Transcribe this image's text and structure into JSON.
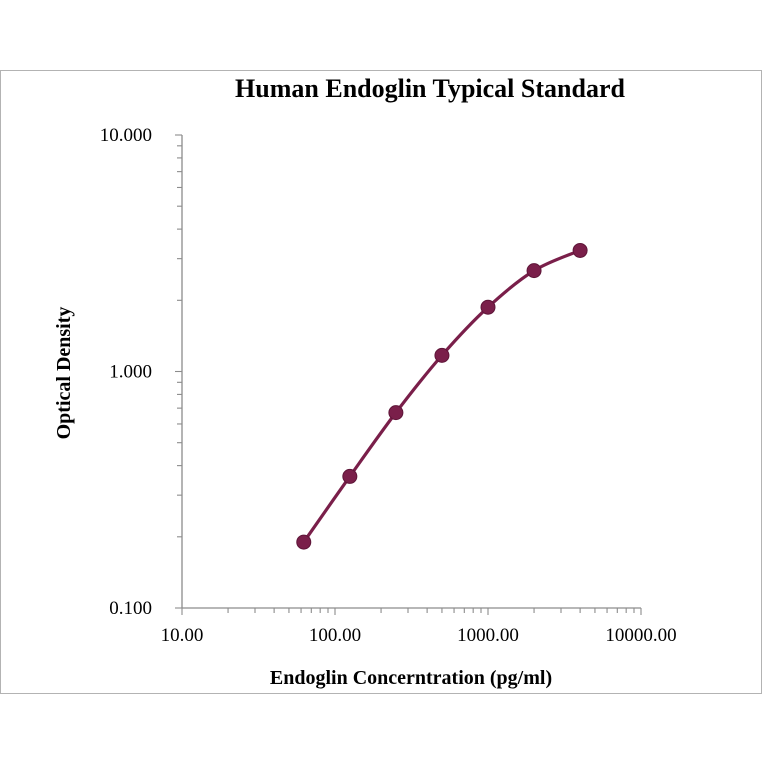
{
  "chart_data": {
    "type": "line",
    "title": "Human Endoglin Typical Standard",
    "xlabel": "Endoglin Concerntration (pg/ml)",
    "ylabel": "Optical Density",
    "x_scale": "log",
    "y_scale": "log",
    "xlim": [
      10,
      10000
    ],
    "ylim": [
      0.1,
      10
    ],
    "x_tick_labels": [
      "10.00",
      "100.00",
      "1000.00",
      "10000.00"
    ],
    "y_tick_labels": [
      "0.100",
      "1.000",
      "10.000"
    ],
    "grid": false,
    "legend": "none",
    "series": [
      {
        "x": [
          62.5,
          125,
          250,
          500,
          1000,
          2000,
          4000
        ],
        "y": [
          0.19,
          0.36,
          0.67,
          1.17,
          1.87,
          2.67,
          3.25
        ],
        "color": "#7a1f4a",
        "marker": "circle",
        "smooth": true
      }
    ]
  }
}
